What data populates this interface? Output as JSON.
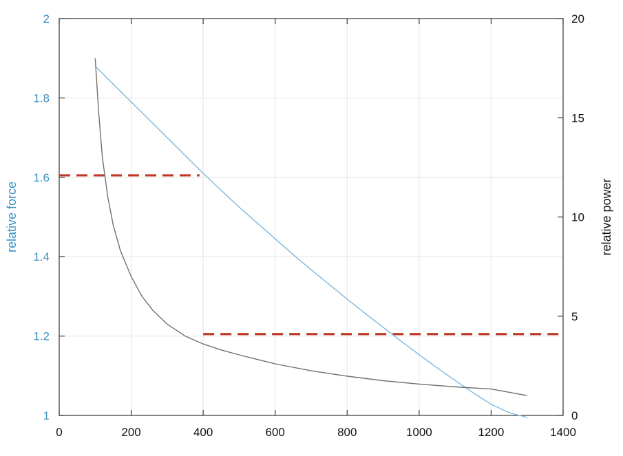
{
  "chart_data": {
    "type": "line",
    "title": "",
    "xlabel": "",
    "ylabel_left": "relative force",
    "ylabel_right": "relative power",
    "xlim": [
      0,
      1400
    ],
    "ylim_left": [
      1,
      2
    ],
    "ylim_right": [
      0,
      20
    ],
    "grid": true,
    "x_ticks": [
      "0",
      "200",
      "400",
      "600",
      "800",
      "1000",
      "1200",
      "1400"
    ],
    "y_left_ticks": [
      "1",
      "1.2",
      "1.4",
      "1.6",
      "1.8",
      "2"
    ],
    "y_right_ticks": [
      "0",
      "5",
      "10",
      "15",
      "20"
    ],
    "series": [
      {
        "axis": "left",
        "color": "#7fb8dc",
        "x": [
          100,
          150,
          200,
          250,
          300,
          350,
          400,
          450,
          500,
          550,
          600,
          650,
          700,
          750,
          800,
          850,
          900,
          950,
          1000,
          1050,
          1100,
          1150,
          1200,
          1250,
          1300
        ],
        "y": [
          1.88,
          1.835,
          1.79,
          1.745,
          1.7,
          1.655,
          1.61,
          1.567,
          1.525,
          1.485,
          1.445,
          1.405,
          1.367,
          1.33,
          1.293,
          1.257,
          1.222,
          1.187,
          1.153,
          1.12,
          1.088,
          1.057,
          1.028,
          1.007,
          0.995
        ]
      },
      {
        "axis": "right",
        "color": "#707070",
        "x": [
          100,
          110,
          120,
          135,
          150,
          170,
          200,
          230,
          260,
          300,
          350,
          400,
          450,
          500,
          600,
          700,
          800,
          900,
          1000,
          1100,
          1200,
          1300
        ],
        "y": [
          18.0,
          15.2,
          13.0,
          11.0,
          9.6,
          8.3,
          7.0,
          6.0,
          5.3,
          4.6,
          4.0,
          3.6,
          3.3,
          3.05,
          2.6,
          2.25,
          1.98,
          1.75,
          1.58,
          1.44,
          1.33,
          1.0
        ]
      }
    ],
    "reference_lines": [
      {
        "axis": "left",
        "color": "#c0392b",
        "style": "dashed",
        "y": 1.605,
        "x_from": 0,
        "x_to": 390
      },
      {
        "axis": "left",
        "color": "#c0392b",
        "style": "dashed",
        "y": 1.205,
        "x_from": 400,
        "x_to": 1400
      }
    ],
    "colors": {
      "left_axis": "#3a8fc4",
      "right_axis": "#111111",
      "grid": "#e4e4e4",
      "frame": "#333333"
    }
  }
}
